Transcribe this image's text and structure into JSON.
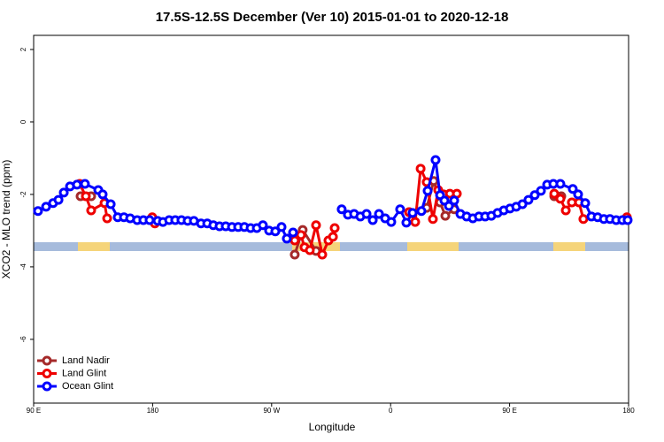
{
  "chart_data": {
    "type": "line",
    "title": "17.5S-12.5S December (Ver 10)   2015-01-01 to 2020-12-18",
    "x_label": "Longitude",
    "y_label": "XCO2 - MLO trend (ppm)",
    "xlim": [
      90,
      540
    ],
    "ylim": [
      -7.76,
      2.39
    ],
    "xticks": [
      {
        "value": 90,
        "label": "90 E"
      },
      180,
      {
        "value": 270,
        "label": "90 W"
      },
      {
        "value": 360,
        "label": "0"
      },
      {
        "value": 450,
        "label": "90 E"
      },
      {
        "value": 540,
        "label": "180"
      }
    ],
    "yticks": [
      2,
      0,
      -2,
      -4,
      -6
    ],
    "legend": "bottomleft",
    "series": [
      {
        "name": "Land Nadir",
        "color": "#a52a2a",
        "x": [
          125.5,
          133.5,
          null,
          287.5,
          293.5,
          303.6,
          null,
          374.0,
          387.3,
          392.6,
          397.4,
          401.4,
          408.1,
          null,
          483.8,
          489.1
        ],
        "values": [
          -2.05,
          -2.05,
          null,
          -3.66,
          -2.98,
          -3.56,
          null,
          -2.49,
          -2.37,
          -1.63,
          -2.22,
          -2.59,
          -2.41,
          null,
          -2.05,
          -2.05
        ]
      },
      {
        "name": "Land Glint",
        "color": "#ee0000",
        "x": [
          124.8,
          129.5,
          133.5,
          143.6,
          145.6,
          null,
          179.7,
          181.7,
          null,
          287.5,
          292.2,
          294.9,
          298.9,
          303.6,
          308.3,
          313.0,
          316.4,
          317.7,
          null,
          374.0,
          378.6,
          382.7,
          387.3,
          392.0,
          396.0,
          400.1,
          404.8,
          410.1,
          null,
          483.8,
          488.4,
          492.5,
          497.1,
          502.5,
          505.8,
          null,
          538.7
        ],
        "values": [
          -1.71,
          -2.05,
          -2.44,
          -2.24,
          -2.66,
          null,
          -2.63,
          -2.8,
          null,
          -3.27,
          -3.12,
          -3.46,
          -3.54,
          -2.85,
          -3.66,
          -3.27,
          -3.17,
          -2.93,
          null,
          -2.49,
          -2.76,
          -1.29,
          -1.66,
          -2.68,
          -1.88,
          -2.0,
          -1.98,
          -1.98,
          null,
          -1.98,
          -2.12,
          -2.44,
          -2.22,
          -2.22,
          -2.68,
          null,
          -2.63
        ]
      },
      {
        "name": "Ocean Glint",
        "color": "#0000ff",
        "x": [
          93.3,
          99.4,
          104.7,
          108.8,
          112.8,
          117.5,
          122.8,
          128.8,
          138.9,
          142.2,
          148.3,
          153.6,
          158.3,
          163.0,
          168.3,
          173.0,
          177.7,
          183.8,
          187.8,
          192.5,
          197.1,
          201.8,
          206.5,
          211.2,
          216.6,
          221.3,
          225.9,
          230.6,
          235.3,
          240.0,
          244.7,
          249.4,
          254.1,
          258.8,
          263.4,
          268.1,
          272.8,
          277.5,
          281.5,
          286.2,
          null,
          323.0,
          327.7,
          332.4,
          337.1,
          341.8,
          346.5,
          351.2,
          355.9,
          360.5,
          367.2,
          371.9,
          376.6,
          383.3,
          388.0,
          394.0,
          397.4,
          400.7,
          404.1,
          408.1,
          412.8,
          417.5,
          422.2,
          426.8,
          431.5,
          436.2,
          440.9,
          445.6,
          450.3,
          455.0,
          459.7,
          464.3,
          469.0,
          473.7,
          478.4,
          483.1,
          488.4,
          497.8,
          501.8,
          507.2,
          511.9,
          516.6,
          521.3,
          525.9,
          530.6,
          535.3,
          539.3
        ],
        "values": [
          -2.46,
          -2.34,
          -2.24,
          -2.15,
          -1.95,
          -1.78,
          -1.73,
          -1.71,
          -1.88,
          -2.0,
          -2.27,
          -2.63,
          -2.63,
          -2.66,
          -2.71,
          -2.71,
          -2.71,
          -2.73,
          -2.76,
          -2.71,
          -2.71,
          -2.71,
          -2.73,
          -2.73,
          -2.8,
          -2.8,
          -2.85,
          -2.88,
          -2.88,
          -2.9,
          -2.9,
          -2.9,
          -2.93,
          -2.93,
          -2.85,
          -3.0,
          -3.02,
          -2.9,
          -3.22,
          -3.05,
          null,
          -2.41,
          -2.56,
          -2.54,
          -2.61,
          -2.54,
          -2.71,
          -2.54,
          -2.66,
          -2.76,
          -2.41,
          -2.78,
          -2.51,
          -2.46,
          -1.9,
          -1.05,
          -2.02,
          -2.17,
          -2.32,
          -2.17,
          -2.54,
          -2.61,
          -2.66,
          -2.61,
          -2.61,
          -2.59,
          -2.51,
          -2.44,
          -2.39,
          -2.34,
          -2.27,
          -2.15,
          -2.02,
          -1.9,
          -1.73,
          -1.71,
          -1.71,
          -1.85,
          -2.0,
          -2.24,
          -2.61,
          -2.63,
          -2.68,
          -2.68,
          -2.71,
          -2.71,
          -2.71
        ]
      }
    ]
  }
}
